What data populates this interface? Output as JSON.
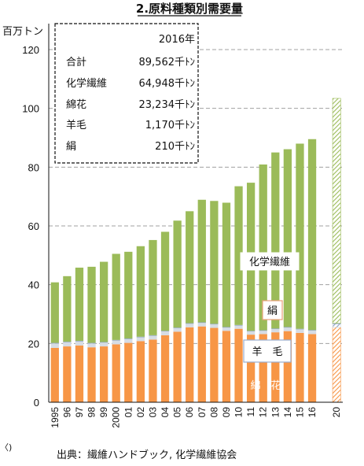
{
  "chart_data": {
    "type": "bar",
    "stacked": true,
    "title": "2.原料種類別需要量",
    "ylabel": "百万トン",
    "ylim": [
      0,
      130
    ],
    "yticks": [
      0,
      20,
      40,
      60,
      80,
      100,
      120
    ],
    "grid": "dashed horizontal",
    "categories": [
      "1995",
      "96",
      "97",
      "98",
      "99",
      "2000",
      "01",
      "02",
      "03",
      "04",
      "05",
      "06",
      "07",
      "08",
      "09",
      "10",
      "11",
      "12",
      "13",
      "14",
      "15",
      "16",
      "",
      "20"
    ],
    "series": [
      {
        "name": "綿花",
        "color": "#f79646",
        "values": [
          18.5,
          19.0,
          19.3,
          18.7,
          19.0,
          19.7,
          20.2,
          20.8,
          21.3,
          22.8,
          24.0,
          25.5,
          25.8,
          25.3,
          24.3,
          25.0,
          23.0,
          23.2,
          23.8,
          24.2,
          23.6,
          23.2,
          null,
          25.5
        ]
      },
      {
        "name": "羊毛",
        "color": "#d6dce4",
        "values": [
          1.5,
          1.4,
          1.4,
          1.3,
          1.3,
          1.3,
          1.3,
          1.3,
          1.3,
          1.3,
          1.2,
          1.2,
          1.2,
          1.2,
          1.1,
          1.1,
          1.1,
          1.1,
          1.1,
          1.2,
          1.2,
          1.17,
          null,
          1.2
        ]
      },
      {
        "name": "絹",
        "color": "#8aa0c0",
        "values": [
          0.2,
          0.2,
          0.2,
          0.2,
          0.2,
          0.2,
          0.2,
          0.2,
          0.2,
          0.2,
          0.2,
          0.2,
          0.2,
          0.2,
          0.2,
          0.2,
          0.2,
          0.2,
          0.2,
          0.2,
          0.2,
          0.21,
          null,
          0.2
        ]
      },
      {
        "name": "化学繊維",
        "color": "#9bbb59",
        "values": [
          20.6,
          22.3,
          24.9,
          25.9,
          27.3,
          29.3,
          29.5,
          30.8,
          32.4,
          33.7,
          36.4,
          38.1,
          41.7,
          41.8,
          42.3,
          47.2,
          50.4,
          56.4,
          59.9,
          60.5,
          63.0,
          64.95,
          null,
          76.5
        ]
      }
    ],
    "forecast_categories": [
      "20"
    ],
    "annotations": {
      "stat_box": {
        "year": "2016年",
        "rows": [
          {
            "label": "合計",
            "value": "89,562千ﾄﾝ"
          },
          {
            "label": "化学繊維",
            "value": "64,948千ﾄﾝ"
          },
          {
            "label": "綿花",
            "value": "23,234千ﾄﾝ"
          },
          {
            "label": "羊毛",
            "value": "1,170千ﾄﾝ"
          },
          {
            "label": "絹",
            "value": "210千ﾄﾝ"
          }
        ]
      },
      "series_labels": [
        "化学繊維",
        "絹",
        "羊　毛",
        "綿　花"
      ]
    },
    "source": "出典：繊維ハンドブック, 化学繊維協会",
    "edge_fragment": "〈)"
  }
}
